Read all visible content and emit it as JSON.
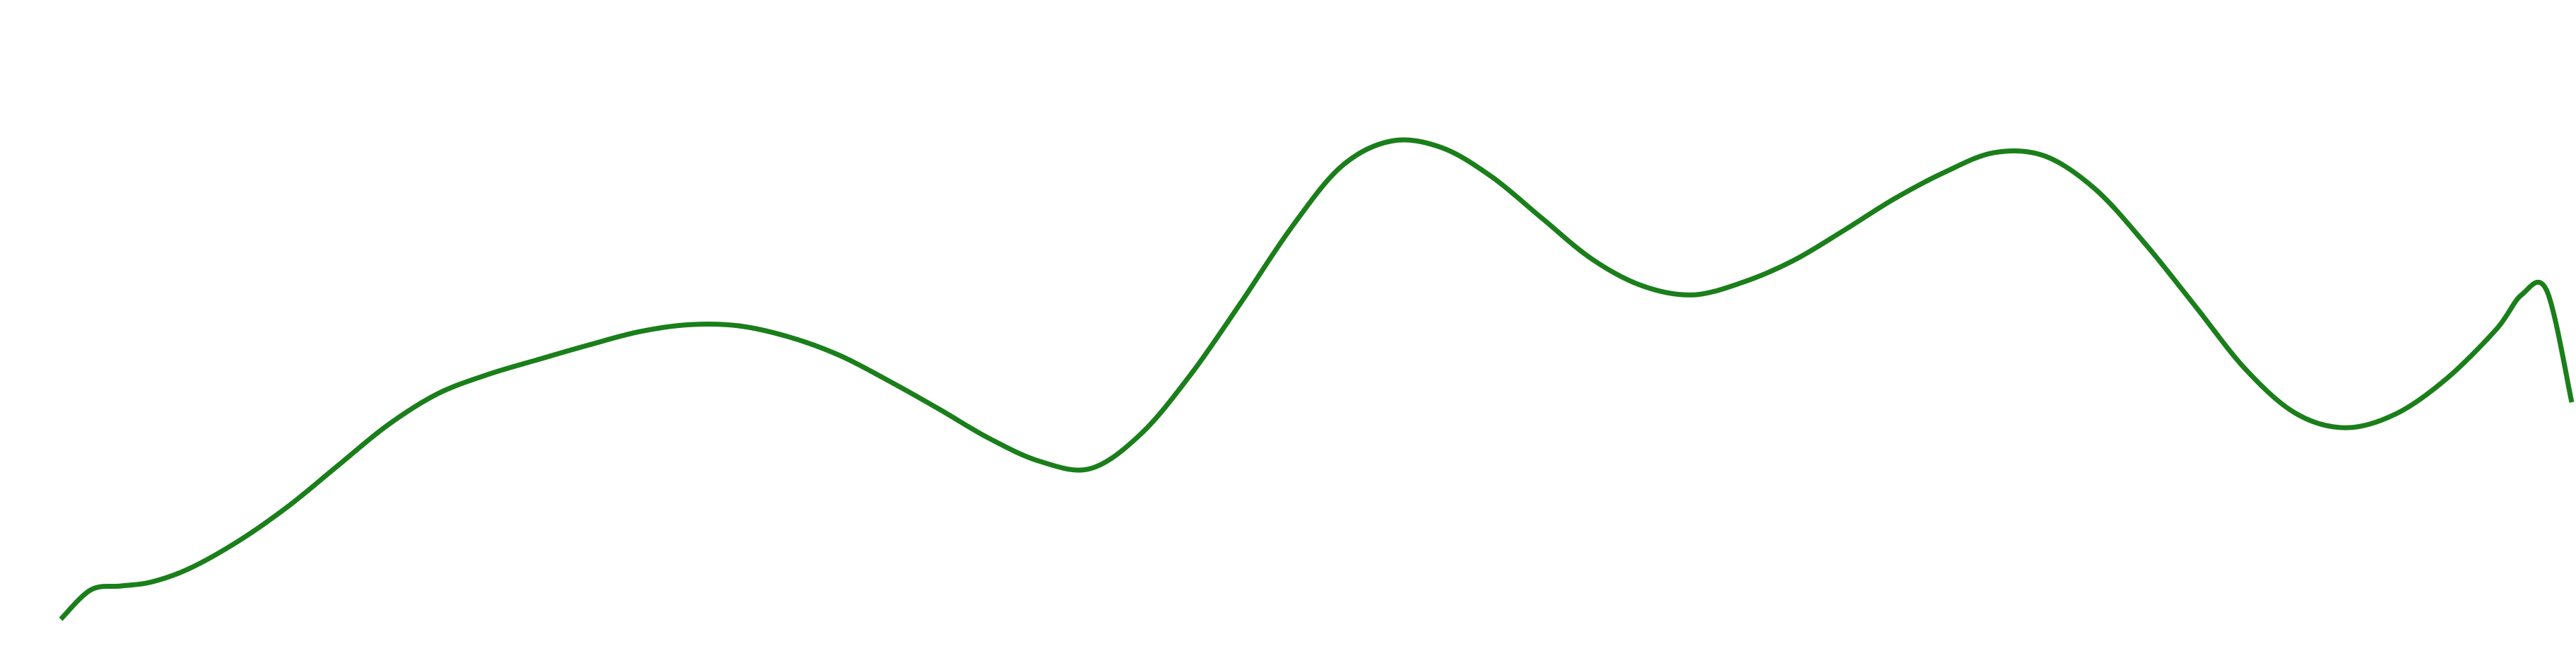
{
  "chart_data": {
    "type": "line",
    "title": "",
    "xlabel": "",
    "ylabel": "",
    "grid": false,
    "axes_visible": false,
    "legend": "none",
    "xlim": [
      0,
      100
    ],
    "ylim": [
      0,
      100
    ],
    "series": [
      {
        "color": "#1a7f1a",
        "x": [
          0,
          1.2,
          2.4,
          3.6,
          5.1,
          7.0,
          9.0,
          11.0,
          13.0,
          15.0,
          17.0,
          19.0,
          21.0,
          23.0,
          25.0,
          27.0,
          29.0,
          31.0,
          33.0,
          35.0,
          37.0,
          39.0,
          41.0,
          43.0,
          45.0,
          47.0,
          49.0,
          51.0,
          53.0,
          55.0,
          57.0,
          59.0,
          61.0,
          63.0,
          65.0,
          67.0,
          69.0,
          71.0,
          73.0,
          75.0,
          77.0,
          79.0,
          81.0,
          83.0,
          85.0,
          87.0,
          89.0,
          91.0,
          93.0,
          95.0,
          97.0,
          98.0,
          99.0,
          100.0
        ],
        "y": [
          0,
          5.3,
          6.0,
          6.7,
          9.1,
          13.9,
          20.2,
          27.6,
          35.0,
          40.7,
          44.2,
          46.9,
          49.5,
          51.9,
          53.2,
          53.0,
          51.0,
          47.7,
          43.0,
          37.9,
          32.6,
          28.5,
          27.2,
          33.4,
          44.2,
          57.2,
          70.7,
          81.8,
          86.4,
          85.2,
          79.9,
          72.4,
          65.0,
          60.2,
          58.6,
          60.9,
          64.8,
          70.2,
          75.9,
          80.7,
          84.3,
          83.7,
          77.8,
          67.9,
          56.6,
          45.2,
          37.2,
          34.6,
          37.1,
          43.4,
          52.4,
          58.6,
          59.4,
          39.2
        ]
      }
    ]
  }
}
